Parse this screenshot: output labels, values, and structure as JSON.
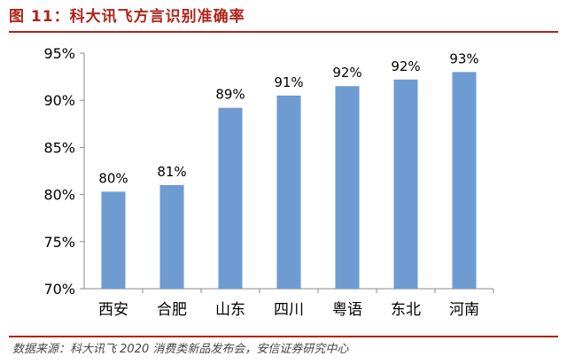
{
  "title": "图 11：科大讯飞方言识别准确率",
  "source": {
    "label": "数据来源：",
    "text": "科大讯飞 2020 消费类新品发布会，安信证券研究中心"
  },
  "chart_data": {
    "type": "bar",
    "title": "",
    "xlabel": "",
    "ylabel": "",
    "categories": [
      "西安",
      "合肥",
      "山东",
      "四川",
      "粤语",
      "东北",
      "河南"
    ],
    "values": [
      80.3,
      81.0,
      89.2,
      90.5,
      91.5,
      92.2,
      93.0
    ],
    "data_labels": [
      "80%",
      "81%",
      "89%",
      "91%",
      "92%",
      "92%",
      "93%"
    ],
    "ylim": [
      70,
      95
    ],
    "yticks": [
      70,
      75,
      80,
      85,
      90,
      95
    ],
    "ytick_labels": [
      "70%",
      "75%",
      "80%",
      "85%",
      "90%",
      "95%"
    ],
    "bar_color": "#6f9bd3",
    "grid": false,
    "legend": "none"
  }
}
